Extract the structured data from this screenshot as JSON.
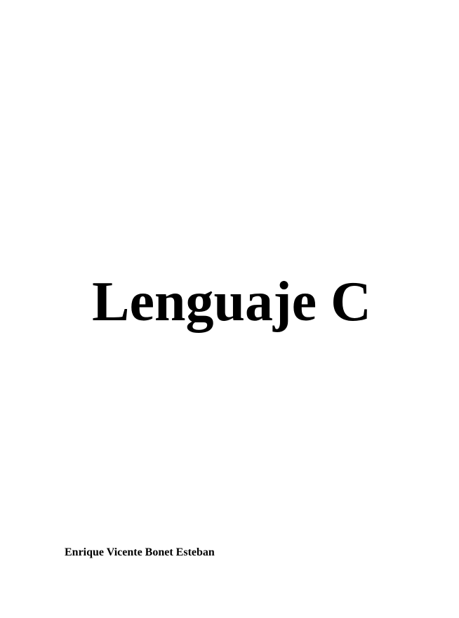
{
  "document": {
    "title": "Lenguaje C",
    "author": "Enrique Vicente Bonet Esteban"
  }
}
